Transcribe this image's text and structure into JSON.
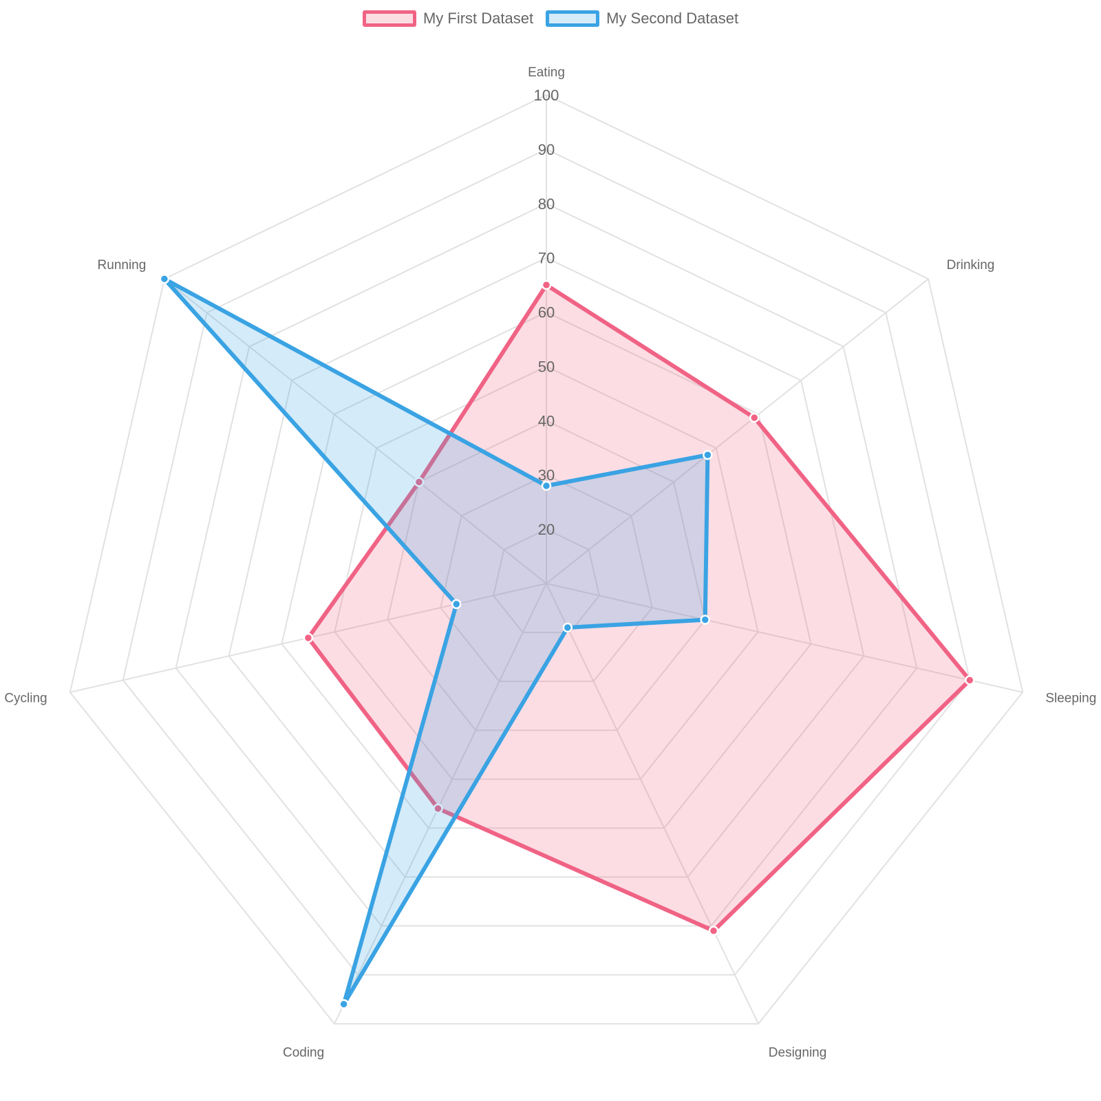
{
  "chart_data": {
    "type": "radar",
    "categories": [
      "Eating",
      "Drinking",
      "Sleeping",
      "Designing",
      "Coding",
      "Cycling",
      "Running"
    ],
    "series": [
      {
        "name": "My First Dataset",
        "values": [
          65,
          59,
          90,
          81,
          56,
          55,
          40
        ],
        "color": "#f06385",
        "fill": "rgba(240,99,133,0.22)"
      },
      {
        "name": "My Second Dataset",
        "values": [
          28,
          48,
          40,
          19,
          96,
          27,
          100
        ],
        "color": "#3aa3e3",
        "fill": "rgba(58,163,227,0.22)"
      }
    ],
    "ticks": [
      "20",
      "30",
      "40",
      "50",
      "60",
      "70",
      "80",
      "90",
      "100"
    ],
    "rmin": 10,
    "rmax": 100,
    "grid": true,
    "legend_position": "top"
  }
}
